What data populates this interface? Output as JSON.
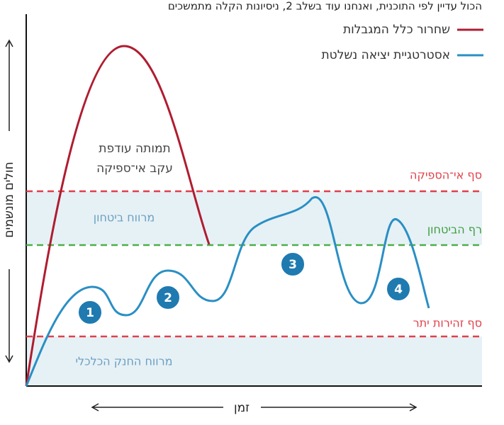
{
  "header": {
    "title": "הכול עדיין לפי התוכנית, ואנחנו עוד בשלב 2, ניסיונות הקלה מתמשכים"
  },
  "legend": [
    {
      "label": "שחרור כלל המגבלות"
    },
    {
      "label": "אסטרטגיית יציאה נשלטת"
    }
  ],
  "axes": {
    "y_label": "חולים מונשמים",
    "x_label": "זמן"
  },
  "thresholds": [
    {
      "label": "סף אי־הספיקה"
    },
    {
      "label": "רף הביטחון"
    },
    {
      "label": "סף זהירות יתר"
    }
  ],
  "regions": [
    {
      "label": "מרווח ביטחון"
    },
    {
      "label": "מרווח החנק הכלכלי"
    }
  ],
  "annotation": {
    "lines": [
      "תמותה עודפת",
      "עקב אי־ספיקה"
    ]
  },
  "markers": [
    "1",
    "2",
    "3",
    "4"
  ]
}
